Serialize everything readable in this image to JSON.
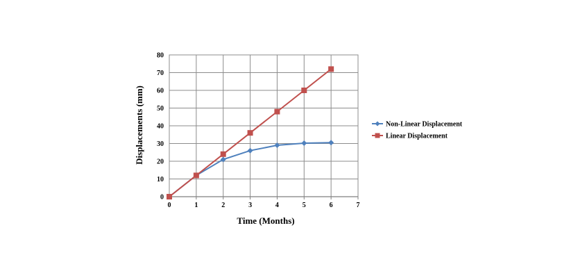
{
  "chart_data": {
    "type": "line",
    "title": "",
    "xlabel": "Time (Months)",
    "ylabel": "Displacements (mm)",
    "xlim": [
      0,
      7
    ],
    "ylim": [
      0,
      80
    ],
    "xticks": [
      0,
      1,
      2,
      3,
      4,
      5,
      6,
      7
    ],
    "yticks": [
      0,
      10,
      20,
      30,
      40,
      50,
      60,
      70,
      80
    ],
    "grid": true,
    "legend_position": "right",
    "series": [
      {
        "name": "Non-Linear Displacement",
        "color": "#4f81bd",
        "marker": "diamond",
        "x": [
          0,
          1,
          2,
          3,
          4,
          5,
          6
        ],
        "y": [
          0,
          12,
          21,
          26,
          29,
          30.2,
          30.5
        ]
      },
      {
        "name": "Linear Displacement",
        "color": "#c0504d",
        "marker": "square",
        "x": [
          0,
          1,
          2,
          3,
          4,
          5,
          6
        ],
        "y": [
          0,
          12,
          24,
          36,
          48,
          60,
          72
        ]
      }
    ]
  }
}
